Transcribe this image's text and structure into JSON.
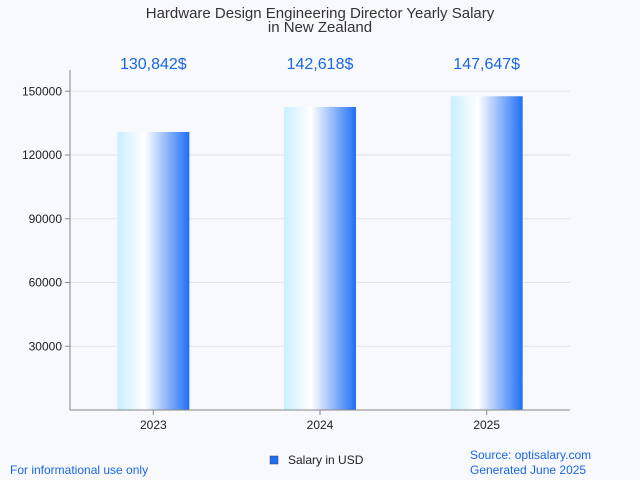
{
  "chart_data": {
    "type": "bar",
    "title_lines": [
      "Hardware Design Engineering Director Yearly Salary",
      "in New Zealand"
    ],
    "categories": [
      "2023",
      "2024",
      "2025"
    ],
    "series": [
      {
        "name": "Salary in USD",
        "values": [
          130842,
          142618,
          147647
        ],
        "value_labels": [
          "130,842$",
          "142,618$",
          "147,647$"
        ]
      }
    ],
    "ylim": [
      0,
      160000
    ],
    "yticks": [
      30000,
      60000,
      90000,
      120000,
      150000
    ],
    "ytick_labels": [
      "30000",
      "60000",
      "90000",
      "120000",
      "150000"
    ],
    "grid": true,
    "legend": "bottom-center"
  },
  "footer": {
    "left_note": "For informational use only",
    "source": "Source: optisalary.com",
    "generated": "Generated June 2025"
  },
  "colors": {
    "accent": "#1a66e6",
    "bar_light": "#c9efff",
    "bar_mid": "#ffffff",
    "bar_dark": "#1f6ff5",
    "grid": "#e2e4ea",
    "axis": "#888888"
  }
}
